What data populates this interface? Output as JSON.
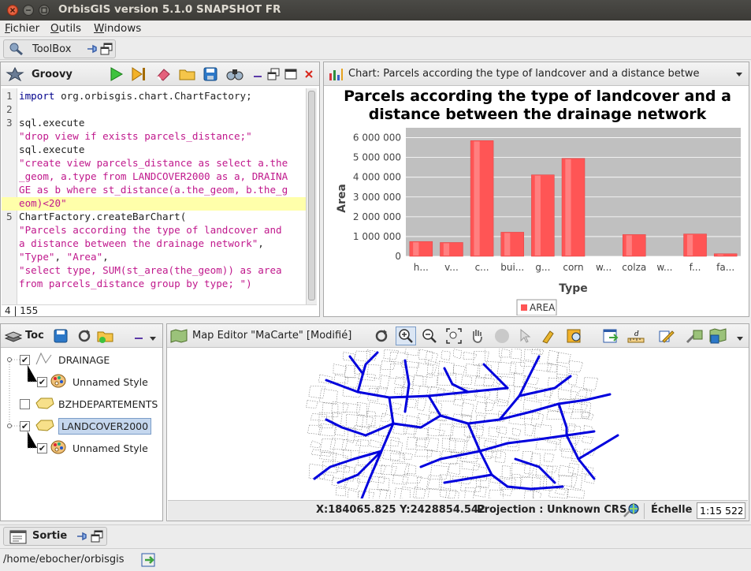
{
  "window": {
    "title": "OrbisGIS version 5.1.0 SNAPSHOT FR"
  },
  "menu": {
    "items": [
      "Fichier",
      "Outils",
      "Windows"
    ]
  },
  "toolbox": {
    "label": "ToolBox"
  },
  "groovy": {
    "title": "Groovy",
    "lines": [
      {
        "num": "1",
        "parts": [
          {
            "t": "import",
            "c": "kw"
          },
          {
            "t": " org.orbisgis.chart.ChartFactory;",
            "c": ""
          }
        ]
      },
      {
        "num": "2",
        "parts": []
      },
      {
        "num": "3",
        "parts": [
          {
            "t": "sql.execute",
            "c": ""
          }
        ]
      },
      {
        "num": "",
        "parts": [
          {
            "t": "\"drop view if exists parcels_distance;\"",
            "c": "str"
          }
        ]
      },
      {
        "num": "",
        "parts": [
          {
            "t": "sql.execute",
            "c": ""
          }
        ]
      },
      {
        "num": "",
        "parts": [
          {
            "t": "\"create view parcels_distance as select a.the",
            "c": "str"
          }
        ]
      },
      {
        "num": "",
        "parts": [
          {
            "t": "_geom, a.type from LANDCOVER2000 as a, DRAINA",
            "c": "str"
          }
        ]
      },
      {
        "num": "",
        "parts": [
          {
            "t": "GE as b where st_distance(a.the_geom, b.the_g",
            "c": "str"
          }
        ]
      },
      {
        "num": "",
        "parts": [
          {
            "t": "eom)<20\"",
            "c": "str"
          }
        ]
      },
      {
        "num": "5",
        "parts": [
          {
            "t": "ChartFactory.createBarChart(",
            "c": ""
          }
        ]
      },
      {
        "num": "",
        "parts": [
          {
            "t": "\"Parcels according the type of landcover and",
            "c": "str"
          }
        ]
      },
      {
        "num": "",
        "parts": [
          {
            "t": "a distance between the drainage network\"",
            "c": "str"
          },
          {
            "t": ",",
            "c": ""
          }
        ]
      },
      {
        "num": "",
        "parts": [
          {
            "t": "\"Type\"",
            "c": "str"
          },
          {
            "t": ", ",
            "c": ""
          },
          {
            "t": "\"Area\"",
            "c": "str"
          },
          {
            "t": ",",
            "c": ""
          }
        ]
      },
      {
        "num": "",
        "parts": [
          {
            "t": "\"select type, SUM(st_area(the_geom)) as area",
            "c": "str"
          }
        ]
      },
      {
        "num": "",
        "parts": [
          {
            "t": "from parcels_distance group by type; \")",
            "c": "str"
          }
        ]
      },
      {
        "num": "",
        "parts": []
      },
      {
        "num": "6",
        "parts": []
      }
    ],
    "highlighted_line_index": 8,
    "status": "4 | 155"
  },
  "chart_panel": {
    "tab_title": "Chart: Parcels according the type of landcover and a distance betwe"
  },
  "chart_data": {
    "type": "bar",
    "title": "Parcels according the type of landcover and a distance between the drainage network",
    "title_lines": [
      "Parcels according the type of landcover and a",
      "distance between the drainage network"
    ],
    "xlabel": "Type",
    "ylabel": "Area",
    "categories": [
      "h...",
      "v...",
      "c...",
      "bui...",
      "g...",
      "corn",
      "w...",
      "colza",
      "w...",
      "f...",
      "fa..."
    ],
    "series": [
      {
        "name": "AREA",
        "values": [
          750000,
          700000,
          5850000,
          1220000,
          4120000,
          4950000,
          0,
          1100000,
          0,
          1130000,
          130000
        ]
      }
    ],
    "ylim": [
      0,
      6500000
    ],
    "yticks": [
      0,
      1000000,
      2000000,
      3000000,
      4000000,
      5000000,
      6000000
    ],
    "ytick_labels": [
      "0",
      "1 000 000",
      "2 000 000",
      "3 000 000",
      "4 000 000",
      "5 000 000",
      "6 000 000"
    ],
    "legend_position": "bottom",
    "grid": true,
    "bar_color": "#ff5555",
    "plot_bg": "#c0c0c0"
  },
  "toc": {
    "title": "Toc",
    "layers": [
      {
        "label": "DRAINAGE",
        "checked": true
      },
      {
        "label": "Unnamed Style",
        "checked": true
      },
      {
        "label": "BZHDEPARTEMENTS",
        "checked": false
      },
      {
        "label": "LANDCOVER2000",
        "checked": true
      },
      {
        "label": "Unnamed Style",
        "checked": true
      }
    ]
  },
  "map_editor": {
    "title": "Map Editor \"MaCarte\" [Modifié]",
    "coordinates": "X:184065.825 Y:2428854.542",
    "projection": "Projection : Unknown CRS",
    "scale_label": "Échelle :",
    "scale_value": "1:15 522"
  },
  "sortie": {
    "label": "Sortie"
  },
  "path": {
    "value": "/home/ebocher/orbisgis"
  },
  "icons": [
    "close-icon",
    "minimize-icon",
    "maximize-icon",
    "toolbox-icon",
    "pin-icon",
    "float-icon",
    "groovy-icon",
    "run-icon",
    "run-selection-icon",
    "clear-icon",
    "open-folder-icon",
    "save-icon",
    "find-icon",
    "chart-icon",
    "toc-icon",
    "map-icon",
    "zoom-in-icon",
    "zoom-out-icon",
    "zoom-extent-icon",
    "pan-icon",
    "palette-icon",
    "layer-icon",
    "console-icon"
  ],
  "colors": {
    "accent": "#e05a2b",
    "map_lines": "#0000dd",
    "code_string": "#c0188c",
    "code_keyword": "#00008b",
    "highlight": "#ffffaa"
  }
}
